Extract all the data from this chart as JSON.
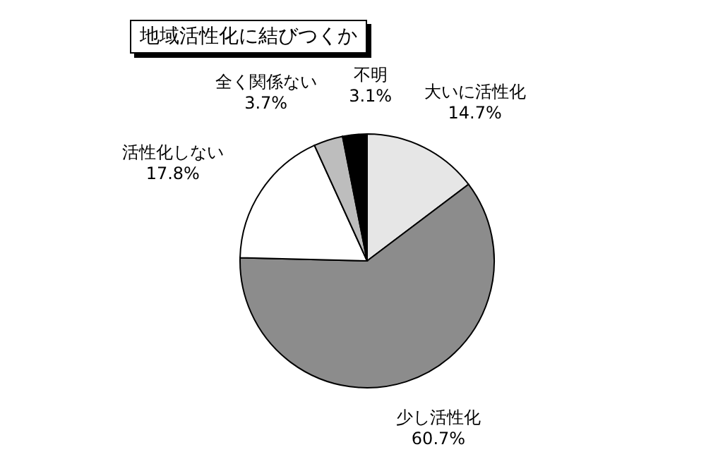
{
  "chart_data": {
    "type": "pie",
    "title": "地域活性化に結びつくか",
    "categories": [
      "大いに活性化",
      "少し活性化",
      "活性化しない",
      "全く関係ない",
      "不明"
    ],
    "values": [
      14.7,
      60.7,
      17.8,
      3.7,
      3.1
    ],
    "value_labels": [
      "14.7%",
      "60.7%",
      "17.8%",
      "3.7%",
      "3.1%"
    ],
    "colors": [
      "#e6e6e6",
      "#8c8c8c",
      "#ffffff",
      "#bdbdbd",
      "#000000"
    ]
  }
}
